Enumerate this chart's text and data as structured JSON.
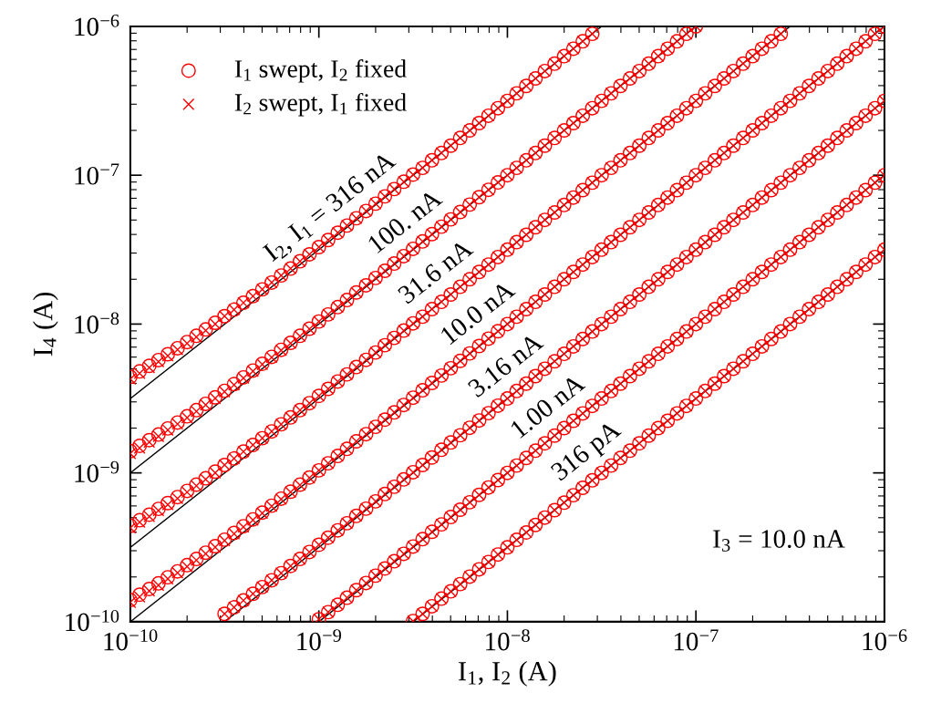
{
  "chart_data": {
    "type": "scatter",
    "xlabel": "I$_{1}$, I$_{2}$ (A)",
    "ylabel": "I$_{4}$ (A)",
    "log": "xy",
    "legend": "top left",
    "grid": false,
    "xlim": [
      1e-10,
      1e-06
    ],
    "ylim": [
      1e-10,
      1e-06
    ],
    "xticks": [
      {
        "value": 1e-10,
        "label": "10$^{−10}$"
      },
      {
        "value": 1e-09,
        "label": "10$^{−9}$"
      },
      {
        "value": 1e-08,
        "label": "10$^{−8}$"
      },
      {
        "value": 1e-07,
        "label": "10$^{−7}$"
      },
      {
        "value": 1e-06,
        "label": "10$^{−6}$"
      }
    ],
    "yticks": [
      {
        "value": 1e-10,
        "label": "10$^{−10}$"
      },
      {
        "value": 1e-09,
        "label": "10$^{−9}$"
      },
      {
        "value": 1e-08,
        "label": "10$^{−8}$"
      },
      {
        "value": 1e-07,
        "label": "10$^{−7}$"
      },
      {
        "value": 1e-06,
        "label": "10$^{−6}$"
      }
    ],
    "x": [
      1e-10,
      1.12e-10,
      1.26e-10,
      1.41e-10,
      1.58e-10,
      1.78e-10,
      2e-10,
      2.24e-10,
      2.51e-10,
      2.82e-10,
      3.16e-10,
      3.55e-10,
      3.98e-10,
      4.47e-10,
      5.01e-10,
      5.62e-10,
      6.31e-10,
      7.08e-10,
      7.94e-10,
      8.91e-10,
      1e-09,
      1.12e-09,
      1.26e-09,
      1.41e-09,
      1.58e-09,
      1.78e-09,
      2e-09,
      2.24e-09,
      2.51e-09,
      2.82e-09,
      3.16e-09,
      3.55e-09,
      3.98e-09,
      4.47e-09,
      5.01e-09,
      5.62e-09,
      6.31e-09,
      7.08e-09,
      7.94e-09,
      8.91e-09,
      1e-08,
      1.12e-08,
      1.26e-08,
      1.41e-08,
      1.58e-08,
      1.78e-08,
      2e-08,
      2.24e-08,
      2.51e-08,
      2.82e-08,
      3.16e-08,
      3.55e-08,
      3.98e-08,
      4.47e-08,
      5.01e-08,
      5.62e-08,
      6.31e-08,
      7.08e-08,
      7.94e-08,
      8.91e-08,
      1e-07,
      1.12e-07,
      1.26e-07,
      1.41e-07,
      1.58e-07,
      1.78e-07,
      2e-07,
      2.24e-07,
      2.51e-07,
      2.82e-07,
      3.16e-07,
      3.55e-07,
      3.98e-07,
      4.47e-07,
      5.01e-07,
      5.62e-07,
      6.31e-07,
      7.08e-07,
      7.94e-07,
      8.91e-07,
      1e-06
    ],
    "series": [
      {
        "type": "line",
        "color": "#000000",
        "x": [
          1e-10,
          3.16e-08
        ],
        "values": [
          3.16e-09,
          1e-06
        ]
      },
      {
        "type": "line",
        "color": "#000000",
        "x": [
          1e-10,
          1e-07
        ],
        "values": [
          1e-09,
          1e-06
        ]
      },
      {
        "type": "line",
        "color": "#000000",
        "x": [
          1e-10,
          3.16e-07
        ],
        "values": [
          3.16e-10,
          1e-06
        ]
      },
      {
        "type": "line",
        "color": "#000000",
        "x": [
          1e-10,
          1e-06
        ],
        "values": [
          1e-10,
          1e-06
        ]
      },
      {
        "type": "line",
        "color": "#000000",
        "x": [
          3.16e-10,
          1e-06
        ],
        "values": [
          1e-10,
          3.16e-07
        ]
      },
      {
        "type": "line",
        "color": "#000000",
        "x": [
          1e-09,
          1e-06
        ],
        "values": [
          1e-10,
          1e-07
        ]
      },
      {
        "type": "line",
        "color": "#000000",
        "x": [
          3.16e-09,
          1e-06
        ],
        "values": [
          1e-10,
          3.16e-08
        ]
      },
      {
        "marker": "circle",
        "color": "#ff0000",
        "name": "I$_{1}$ swept, I$_{2}$ fixed",
        "values": [
          4.42e-09,
          4.81e-09,
          5.24e-09,
          5.73e-09,
          6.27e-09,
          6.88e-09,
          7.57e-09,
          8.34e-09,
          9.2e-09,
          1.02e-08,
          1.13e-08,
          1.25e-08,
          1.39e-08,
          1.54e-08,
          1.71e-08,
          1.9e-08,
          2.12e-08,
          2.36e-08,
          2.64e-08,
          2.94e-08,
          3.29e-08,
          3.67e-08,
          4.11e-08,
          4.59e-08,
          5.14e-08,
          5.75e-08,
          6.44e-08,
          7.21e-08,
          8.07e-08,
          9.04e-08,
          1.01e-07,
          1.12e-07,
          1.26e-07,
          1.41e-07,
          1.58e-07,
          1.78e-07,
          2e-07,
          2.24e-07,
          2.51e-07,
          2.82e-07,
          3.16e-07,
          3.55e-07,
          3.98e-07,
          4.47e-07,
          5.01e-07,
          5.62e-07,
          6.31e-07,
          7.08e-07,
          7.94e-07,
          8.91e-07,
          null,
          null,
          null,
          null,
          null,
          null,
          null,
          null,
          null,
          null,
          null,
          null,
          null,
          null,
          null,
          null,
          null,
          null,
          null,
          null,
          null,
          null,
          null,
          null,
          null,
          null,
          null,
          null,
          null,
          null,
          null
        ]
      },
      {
        "marker": "circle",
        "color": "#ff0000",
        "values": [
          1.4e-09,
          1.52e-09,
          1.66e-09,
          1.81e-09,
          1.99e-09,
          2.18e-09,
          2.4e-09,
          2.64e-09,
          2.91e-09,
          3.22e-09,
          3.56e-09,
          3.95e-09,
          4.38e-09,
          4.87e-09,
          5.41e-09,
          6.02e-09,
          6.71e-09,
          7.48e-09,
          8.34e-09,
          9.31e-09,
          1.04e-08,
          1.16e-08,
          1.3e-08,
          1.45e-08,
          1.63e-08,
          1.82e-08,
          2.04e-08,
          2.28e-08,
          2.55e-08,
          2.86e-08,
          3.2e-08,
          3.59e-08,
          4.02e-08,
          4.51e-08,
          5.05e-08,
          5.66e-08,
          6.35e-08,
          7.12e-08,
          7.98e-08,
          8.95e-08,
          1e-07,
          1.12e-07,
          1.26e-07,
          1.41e-07,
          1.58e-07,
          1.78e-07,
          2e-07,
          2.24e-07,
          2.51e-07,
          2.82e-07,
          3.16e-07,
          3.55e-07,
          3.98e-07,
          4.47e-07,
          5.01e-07,
          5.62e-07,
          6.31e-07,
          7.08e-07,
          7.94e-07,
          8.91e-07,
          1e-06,
          null,
          null,
          null,
          null,
          null,
          null,
          null,
          null,
          null,
          null,
          null,
          null,
          null,
          null,
          null,
          null,
          null,
          null,
          null,
          null
        ]
      },
      {
        "marker": "circle",
        "color": "#ff0000",
        "values": [
          4.42e-10,
          4.81e-10,
          5.24e-10,
          5.73e-10,
          6.27e-10,
          6.88e-10,
          7.57e-10,
          8.34e-10,
          9.2e-10,
          1.02e-09,
          1.13e-09,
          1.25e-09,
          1.39e-09,
          1.54e-09,
          1.71e-09,
          1.9e-09,
          2.12e-09,
          2.36e-09,
          2.64e-09,
          2.94e-09,
          3.29e-09,
          3.67e-09,
          4.11e-09,
          4.59e-09,
          5.14e-09,
          5.75e-09,
          6.44e-09,
          7.21e-09,
          8.07e-09,
          9.04e-09,
          1.01e-08,
          1.12e-08,
          1.26e-08,
          1.41e-08,
          1.58e-08,
          1.78e-08,
          2e-08,
          2.24e-08,
          2.51e-08,
          2.82e-08,
          3.16e-08,
          3.55e-08,
          3.98e-08,
          4.47e-08,
          5.01e-08,
          5.62e-08,
          6.31e-08,
          7.08e-08,
          7.94e-08,
          8.91e-08,
          1e-07,
          1.12e-07,
          1.26e-07,
          1.41e-07,
          1.58e-07,
          1.78e-07,
          2e-07,
          2.24e-07,
          2.51e-07,
          2.82e-07,
          3.16e-07,
          3.55e-07,
          3.98e-07,
          4.47e-07,
          5.01e-07,
          5.62e-07,
          6.31e-07,
          7.08e-07,
          7.94e-07,
          8.91e-07,
          null,
          null,
          null,
          null,
          null,
          null,
          null,
          null,
          null,
          null,
          null
        ]
      },
      {
        "marker": "circle",
        "color": "#ff0000",
        "values": [
          1.4e-10,
          1.52e-10,
          1.66e-10,
          1.81e-10,
          1.99e-10,
          2.18e-10,
          2.4e-10,
          2.64e-10,
          2.91e-10,
          3.22e-10,
          3.56e-10,
          3.95e-10,
          4.38e-10,
          4.87e-10,
          5.41e-10,
          6.02e-10,
          6.71e-10,
          7.48e-10,
          8.34e-10,
          9.31e-10,
          1.04e-09,
          1.16e-09,
          1.3e-09,
          1.45e-09,
          1.63e-09,
          1.82e-09,
          2.04e-09,
          2.28e-09,
          2.55e-09,
          2.86e-09,
          3.2e-09,
          3.59e-09,
          4.02e-09,
          4.51e-09,
          5.05e-09,
          5.66e-09,
          6.35e-09,
          7.12e-09,
          7.98e-09,
          8.95e-09,
          1e-08,
          1.12e-08,
          1.26e-08,
          1.41e-08,
          1.58e-08,
          1.78e-08,
          2e-08,
          2.24e-08,
          2.51e-08,
          2.82e-08,
          3.16e-08,
          3.55e-08,
          3.98e-08,
          4.47e-08,
          5.01e-08,
          5.62e-08,
          6.31e-08,
          7.08e-08,
          7.94e-08,
          8.91e-08,
          1e-07,
          1.12e-07,
          1.26e-07,
          1.41e-07,
          1.58e-07,
          1.78e-07,
          2e-07,
          2.24e-07,
          2.51e-07,
          2.82e-07,
          3.16e-07,
          3.55e-07,
          3.98e-07,
          4.47e-07,
          5.01e-07,
          5.62e-07,
          6.31e-07,
          7.08e-07,
          7.94e-07,
          8.91e-07,
          1e-06
        ]
      },
      {
        "marker": "circle",
        "color": "#ff0000",
        "values": [
          null,
          null,
          null,
          null,
          null,
          null,
          null,
          null,
          null,
          null,
          1.13e-10,
          1.25e-10,
          1.39e-10,
          1.54e-10,
          1.71e-10,
          1.9e-10,
          2.12e-10,
          2.37e-10,
          2.64e-10,
          2.94e-10,
          3.29e-10,
          3.67e-10,
          4.11e-10,
          4.59e-10,
          5.14e-10,
          5.75e-10,
          6.44e-10,
          7.21e-10,
          8.07e-10,
          9.04e-10,
          1.01e-09,
          1.13e-09,
          1.27e-09,
          1.43e-09,
          1.6e-09,
          1.79e-09,
          2.01e-09,
          2.25e-09,
          2.52e-09,
          2.83e-09,
          3.16e-09,
          3.55e-09,
          3.98e-09,
          4.47e-09,
          5.01e-09,
          5.62e-09,
          6.31e-09,
          7.08e-09,
          7.94e-09,
          8.91e-09,
          1e-08,
          1.12e-08,
          1.26e-08,
          1.41e-08,
          1.58e-08,
          1.78e-08,
          2e-08,
          2.24e-08,
          2.51e-08,
          2.82e-08,
          3.16e-08,
          3.55e-08,
          3.98e-08,
          4.47e-08,
          5.01e-08,
          5.62e-08,
          6.31e-08,
          7.08e-08,
          7.94e-08,
          8.91e-08,
          1e-07,
          1.12e-07,
          1.26e-07,
          1.41e-07,
          1.58e-07,
          1.78e-07,
          2e-07,
          2.24e-07,
          2.51e-07,
          2.82e-07,
          3.16e-07
        ]
      },
      {
        "marker": "circle",
        "color": "#ff0000",
        "values": [
          null,
          null,
          null,
          null,
          null,
          null,
          null,
          null,
          null,
          null,
          null,
          null,
          null,
          null,
          null,
          null,
          null,
          null,
          null,
          null,
          1.04e-10,
          1.16e-10,
          1.3e-10,
          1.45e-10,
          1.63e-10,
          1.82e-10,
          2.04e-10,
          2.28e-10,
          2.55e-10,
          2.86e-10,
          3.2e-10,
          3.59e-10,
          4.02e-10,
          4.51e-10,
          5.05e-10,
          5.66e-10,
          6.35e-10,
          7.12e-10,
          7.98e-10,
          8.95e-10,
          1e-09,
          1.12e-09,
          1.26e-09,
          1.41e-09,
          1.58e-09,
          1.78e-09,
          2e-09,
          2.24e-09,
          2.51e-09,
          2.82e-09,
          3.16e-09,
          3.55e-09,
          3.98e-09,
          4.47e-09,
          5.01e-09,
          5.62e-09,
          6.31e-09,
          7.08e-09,
          7.94e-09,
          8.91e-09,
          1e-08,
          1.12e-08,
          1.26e-08,
          1.41e-08,
          1.58e-08,
          1.78e-08,
          2e-08,
          2.24e-08,
          2.51e-08,
          2.82e-08,
          3.16e-08,
          3.55e-08,
          3.98e-08,
          4.47e-08,
          5.01e-08,
          5.62e-08,
          6.31e-08,
          7.08e-08,
          7.94e-08,
          8.91e-08,
          1e-07
        ]
      },
      {
        "marker": "circle",
        "color": "#ff0000",
        "values": [
          null,
          null,
          null,
          null,
          null,
          null,
          null,
          null,
          null,
          null,
          null,
          null,
          null,
          null,
          null,
          null,
          null,
          null,
          null,
          null,
          null,
          null,
          null,
          null,
          null,
          null,
          null,
          null,
          null,
          null,
          1.01e-10,
          1.13e-10,
          1.27e-10,
          1.43e-10,
          1.6e-10,
          1.79e-10,
          2.01e-10,
          2.25e-10,
          2.52e-10,
          2.83e-10,
          3.16e-10,
          3.55e-10,
          3.98e-10,
          4.47e-10,
          5.01e-10,
          5.62e-10,
          6.31e-10,
          7.08e-10,
          7.94e-10,
          8.91e-10,
          1e-09,
          1.12e-09,
          1.26e-09,
          1.41e-09,
          1.58e-09,
          1.78e-09,
          2e-09,
          2.24e-09,
          2.51e-09,
          2.82e-09,
          3.16e-09,
          3.55e-09,
          3.98e-09,
          4.47e-09,
          5.01e-09,
          5.62e-09,
          6.31e-09,
          7.08e-09,
          7.94e-09,
          8.91e-09,
          1e-08,
          1.12e-08,
          1.26e-08,
          1.41e-08,
          1.58e-08,
          1.78e-08,
          2e-08,
          2.24e-08,
          2.51e-08,
          2.82e-08,
          3.16e-08
        ]
      },
      {
        "marker": "cross",
        "color": "#ff0000",
        "name": "I$_{2}$ swept, I$_{1}$ fixed",
        "values": [
          4.27e-09,
          4.66e-09,
          5.09e-09,
          5.58e-09,
          6.12e-09,
          6.73e-09,
          7.42e-09,
          8.19e-09,
          9.05e-09,
          1e-08,
          1.13e-08,
          1.25e-08,
          1.39e-08,
          1.54e-08,
          1.71e-08,
          1.9e-08,
          2.12e-08,
          2.36e-08,
          2.64e-08,
          2.94e-08,
          3.29e-08,
          3.67e-08,
          4.11e-08,
          4.59e-08,
          5.14e-08,
          5.75e-08,
          6.44e-08,
          7.21e-08,
          8.07e-08,
          9.04e-08,
          1.01e-07,
          1.12e-07,
          1.26e-07,
          1.41e-07,
          1.58e-07,
          1.78e-07,
          2e-07,
          2.24e-07,
          2.51e-07,
          2.82e-07,
          3.16e-07,
          3.55e-07,
          3.98e-07,
          4.47e-07,
          5.01e-07,
          5.62e-07,
          6.31e-07,
          7.08e-07,
          7.94e-07,
          8.91e-07,
          null,
          null,
          null,
          null,
          null,
          null,
          null,
          null,
          null,
          null,
          null,
          null,
          null,
          null,
          null,
          null,
          null,
          null,
          null,
          null,
          null,
          null,
          null,
          null,
          null,
          null,
          null,
          null,
          null,
          null,
          null
        ]
      },
      {
        "marker": "cross",
        "color": "#ff0000",
        "values": [
          1.35e-09,
          1.47e-09,
          1.61e-09,
          1.76e-09,
          1.94e-09,
          2.13e-09,
          2.35e-09,
          2.59e-09,
          2.86e-09,
          3.17e-09,
          3.51e-09,
          3.9e-09,
          4.33e-09,
          4.82e-09,
          5.36e-09,
          5.97e-09,
          6.66e-09,
          7.43e-09,
          8.29e-09,
          9.26e-09,
          1.04e-08,
          1.16e-08,
          1.3e-08,
          1.45e-08,
          1.63e-08,
          1.82e-08,
          2.04e-08,
          2.28e-08,
          2.55e-08,
          2.86e-08,
          3.2e-08,
          3.59e-08,
          4.02e-08,
          4.51e-08,
          5.05e-08,
          5.66e-08,
          6.35e-08,
          7.12e-08,
          7.98e-08,
          8.95e-08,
          1e-07,
          1.12e-07,
          1.26e-07,
          1.41e-07,
          1.58e-07,
          1.78e-07,
          2e-07,
          2.24e-07,
          2.51e-07,
          2.82e-07,
          3.16e-07,
          3.55e-07,
          3.98e-07,
          4.47e-07,
          5.01e-07,
          5.62e-07,
          6.31e-07,
          7.08e-07,
          7.94e-07,
          8.91e-07,
          1e-06,
          null,
          null,
          null,
          null,
          null,
          null,
          null,
          null,
          null,
          null,
          null,
          null,
          null,
          null,
          null,
          null,
          null,
          null,
          null,
          null
        ]
      },
      {
        "marker": "cross",
        "color": "#ff0000",
        "values": [
          4.27e-10,
          4.66e-10,
          5.09e-10,
          5.58e-10,
          6.12e-10,
          6.73e-10,
          7.42e-10,
          8.19e-10,
          9.05e-10,
          1e-09,
          1.13e-09,
          1.25e-09,
          1.39e-09,
          1.54e-09,
          1.71e-09,
          1.9e-09,
          2.12e-09,
          2.36e-09,
          2.64e-09,
          2.94e-09,
          3.29e-09,
          3.67e-09,
          4.11e-09,
          4.59e-09,
          5.14e-09,
          5.75e-09,
          6.44e-09,
          7.21e-09,
          8.07e-09,
          9.04e-09,
          1.01e-08,
          1.12e-08,
          1.26e-08,
          1.41e-08,
          1.58e-08,
          1.78e-08,
          2e-08,
          2.24e-08,
          2.51e-08,
          2.82e-08,
          3.16e-08,
          3.55e-08,
          3.98e-08,
          4.47e-08,
          5.01e-08,
          5.62e-08,
          6.31e-08,
          7.08e-08,
          7.94e-08,
          8.91e-08,
          1e-07,
          1.12e-07,
          1.26e-07,
          1.41e-07,
          1.58e-07,
          1.78e-07,
          2e-07,
          2.24e-07,
          2.51e-07,
          2.82e-07,
          3.16e-07,
          3.55e-07,
          3.98e-07,
          4.47e-07,
          5.01e-07,
          5.62e-07,
          6.31e-07,
          7.08e-07,
          7.94e-07,
          8.91e-07,
          null,
          null,
          null,
          null,
          null,
          null,
          null,
          null,
          null,
          null,
          null
        ]
      },
      {
        "marker": "cross",
        "color": "#ff0000",
        "values": [
          1.35e-10,
          1.47e-10,
          1.61e-10,
          1.76e-10,
          1.94e-10,
          2.13e-10,
          2.35e-10,
          2.59e-10,
          2.86e-10,
          3.17e-10,
          3.51e-10,
          3.9e-10,
          4.33e-10,
          4.82e-10,
          5.36e-10,
          5.97e-10,
          6.66e-10,
          7.43e-10,
          8.29e-10,
          9.26e-10,
          1.04e-09,
          1.16e-09,
          1.3e-09,
          1.45e-09,
          1.63e-09,
          1.82e-09,
          2.04e-09,
          2.28e-09,
          2.55e-09,
          2.86e-09,
          3.2e-09,
          3.59e-09,
          4.02e-09,
          4.51e-09,
          5.05e-09,
          5.66e-09,
          6.35e-09,
          7.12e-09,
          7.98e-09,
          8.95e-09,
          1e-08,
          1.12e-08,
          1.26e-08,
          1.41e-08,
          1.58e-08,
          1.78e-08,
          2e-08,
          2.24e-08,
          2.51e-08,
          2.82e-08,
          3.16e-08,
          3.55e-08,
          3.98e-08,
          4.47e-08,
          5.01e-08,
          5.62e-08,
          6.31e-08,
          7.08e-08,
          7.94e-08,
          8.91e-08,
          1e-07,
          1.12e-07,
          1.26e-07,
          1.41e-07,
          1.58e-07,
          1.78e-07,
          2e-07,
          2.24e-07,
          2.51e-07,
          2.82e-07,
          3.16e-07,
          3.55e-07,
          3.98e-07,
          4.47e-07,
          5.01e-07,
          5.62e-07,
          6.31e-07,
          7.08e-07,
          7.94e-07,
          8.91e-07,
          1e-06
        ]
      },
      {
        "marker": "cross",
        "color": "#ff0000",
        "values": [
          null,
          null,
          null,
          null,
          null,
          null,
          null,
          null,
          null,
          null,
          1.13e-10,
          1.25e-10,
          1.39e-10,
          1.54e-10,
          1.71e-10,
          1.9e-10,
          2.12e-10,
          2.37e-10,
          2.64e-10,
          2.94e-10,
          3.29e-10,
          3.67e-10,
          4.11e-10,
          4.59e-10,
          5.14e-10,
          5.75e-10,
          6.44e-10,
          7.21e-10,
          8.07e-10,
          9.04e-10,
          1.01e-09,
          1.13e-09,
          1.27e-09,
          1.43e-09,
          1.6e-09,
          1.79e-09,
          2.01e-09,
          2.25e-09,
          2.52e-09,
          2.83e-09,
          3.16e-09,
          3.55e-09,
          3.98e-09,
          4.47e-09,
          5.01e-09,
          5.62e-09,
          6.31e-09,
          7.08e-09,
          7.94e-09,
          8.91e-09,
          1e-08,
          1.12e-08,
          1.26e-08,
          1.41e-08,
          1.58e-08,
          1.78e-08,
          2e-08,
          2.24e-08,
          2.51e-08,
          2.82e-08,
          3.16e-08,
          3.55e-08,
          3.98e-08,
          4.47e-08,
          5.01e-08,
          5.62e-08,
          6.31e-08,
          7.08e-08,
          7.94e-08,
          8.91e-08,
          1e-07,
          1.12e-07,
          1.26e-07,
          1.41e-07,
          1.58e-07,
          1.78e-07,
          2e-07,
          2.24e-07,
          2.51e-07,
          2.82e-07,
          3.16e-07
        ]
      },
      {
        "marker": "cross",
        "color": "#ff0000",
        "values": [
          null,
          null,
          null,
          null,
          null,
          null,
          null,
          null,
          null,
          null,
          null,
          null,
          null,
          null,
          null,
          null,
          null,
          null,
          null,
          null,
          1.04e-10,
          1.16e-10,
          1.3e-10,
          1.45e-10,
          1.63e-10,
          1.82e-10,
          2.04e-10,
          2.28e-10,
          2.55e-10,
          2.86e-10,
          3.2e-10,
          3.59e-10,
          4.02e-10,
          4.51e-10,
          5.05e-10,
          5.66e-10,
          6.35e-10,
          7.12e-10,
          7.98e-10,
          8.95e-10,
          1e-09,
          1.12e-09,
          1.26e-09,
          1.41e-09,
          1.58e-09,
          1.78e-09,
          2e-09,
          2.24e-09,
          2.51e-09,
          2.82e-09,
          3.16e-09,
          3.55e-09,
          3.98e-09,
          4.47e-09,
          5.01e-09,
          5.62e-09,
          6.31e-09,
          7.08e-09,
          7.94e-09,
          8.91e-09,
          1e-08,
          1.12e-08,
          1.26e-08,
          1.41e-08,
          1.58e-08,
          1.78e-08,
          2e-08,
          2.24e-08,
          2.51e-08,
          2.82e-08,
          3.16e-08,
          3.55e-08,
          3.98e-08,
          4.47e-08,
          5.01e-08,
          5.62e-08,
          6.31e-08,
          7.08e-08,
          7.94e-08,
          8.91e-08,
          1e-07
        ]
      },
      {
        "marker": "cross",
        "color": "#ff0000",
        "values": [
          null,
          null,
          null,
          null,
          null,
          null,
          null,
          null,
          null,
          null,
          null,
          null,
          null,
          null,
          null,
          null,
          null,
          null,
          null,
          null,
          null,
          null,
          null,
          null,
          null,
          null,
          null,
          null,
          null,
          null,
          1.01e-10,
          1.13e-10,
          1.27e-10,
          1.43e-10,
          1.6e-10,
          1.79e-10,
          2.01e-10,
          2.25e-10,
          2.52e-10,
          2.83e-10,
          3.16e-10,
          3.55e-10,
          3.98e-10,
          4.47e-10,
          5.01e-10,
          5.62e-10,
          6.31e-10,
          7.08e-10,
          7.94e-10,
          8.91e-10,
          1e-09,
          1.12e-09,
          1.26e-09,
          1.41e-09,
          1.58e-09,
          1.78e-09,
          2e-09,
          2.24e-09,
          2.51e-09,
          2.82e-09,
          3.16e-09,
          3.55e-09,
          3.98e-09,
          4.47e-09,
          5.01e-09,
          5.62e-09,
          6.31e-09,
          7.08e-09,
          7.94e-09,
          8.91e-09,
          1e-08,
          1.12e-08,
          1.26e-08,
          1.41e-08,
          1.58e-08,
          1.78e-08,
          2e-08,
          2.24e-08,
          2.51e-08,
          2.82e-08,
          3.16e-08
        ]
      }
    ],
    "annotations": [
      {
        "text": "I$_{2}$, I$_{1}$ = 316 nA",
        "x": 1.4e-09,
        "y": 4.42e-08
      },
      {
        "text": "100. nA",
        "x": 3.5e-09,
        "y": 3.5e-08
      },
      {
        "text": "31.6 nA",
        "x": 5.1e-09,
        "y": 1.61e-08
      },
      {
        "text": "10.0 nA",
        "x": 8.5e-09,
        "y": 8.5e-09
      },
      {
        "text": "3.16 nA",
        "x": 1.2e-08,
        "y": 3.79e-09
      },
      {
        "text": "1.00 nA",
        "x": 2e-08,
        "y": 2e-09
      },
      {
        "text": "316 pA",
        "x": 3.2e-08,
        "y": 1.01e-09
      },
      "I$_{3}$ = 10.0 nA"
    ]
  }
}
